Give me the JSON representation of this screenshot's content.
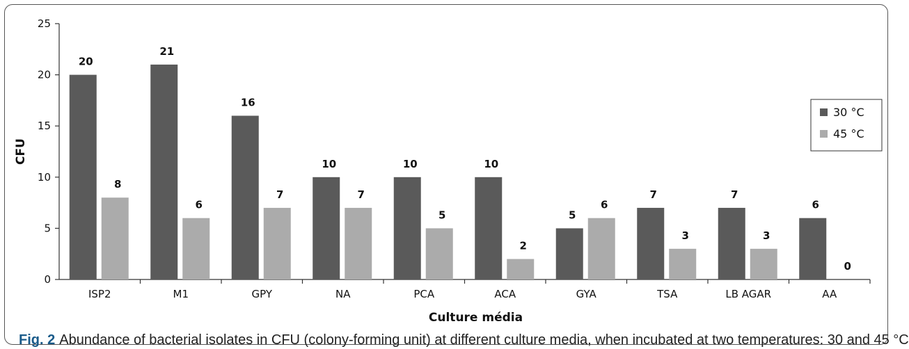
{
  "caption": {
    "label": "Fig. 2",
    "text": "Abundance of bacterial isolates in CFU (colony-forming unit) at different culture media, when incubated at two temperatures: 30 and 45 °C"
  },
  "chart_data": {
    "type": "bar",
    "categories": [
      "ISP2",
      "M1",
      "GPY",
      "NA",
      "PCA",
      "ACA",
      "GYA",
      "TSA",
      "LB AGAR",
      "AA"
    ],
    "series": [
      {
        "name": "30 °C",
        "color": "#5a5a5a",
        "values": [
          20,
          21,
          16,
          10,
          10,
          10,
          5,
          7,
          7,
          6
        ]
      },
      {
        "name": "45 °C",
        "color": "#ababab",
        "values": [
          8,
          6,
          7,
          7,
          5,
          2,
          6,
          3,
          3,
          0
        ]
      }
    ],
    "xlabel": "Culture média",
    "ylabel": "CFU",
    "ylim": [
      0,
      25
    ],
    "yticks": [
      0,
      5,
      10,
      15,
      20,
      25
    ],
    "grid": false,
    "legend": "right",
    "data_labels": true
  }
}
